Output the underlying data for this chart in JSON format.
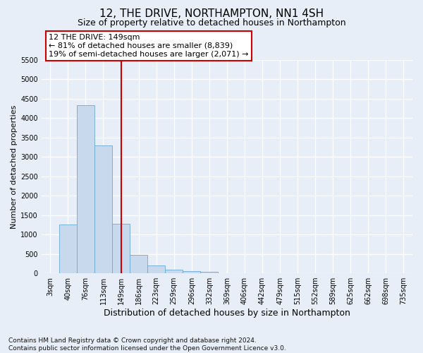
{
  "title": "12, THE DRIVE, NORTHAMPTON, NN1 4SH",
  "subtitle": "Size of property relative to detached houses in Northampton",
  "xlabel": "Distribution of detached houses by size in Northampton",
  "ylabel": "Number of detached properties",
  "footer_line1": "Contains HM Land Registry data © Crown copyright and database right 2024.",
  "footer_line2": "Contains public sector information licensed under the Open Government Licence v3.0.",
  "bar_labels": [
    "3sqm",
    "40sqm",
    "76sqm",
    "113sqm",
    "149sqm",
    "186sqm",
    "223sqm",
    "259sqm",
    "296sqm",
    "332sqm",
    "369sqm",
    "406sqm",
    "442sqm",
    "479sqm",
    "515sqm",
    "552sqm",
    "589sqm",
    "625sqm",
    "662sqm",
    "698sqm",
    "735sqm"
  ],
  "bar_values": [
    0,
    1260,
    4320,
    3290,
    1280,
    480,
    205,
    90,
    55,
    45,
    0,
    0,
    0,
    0,
    0,
    0,
    0,
    0,
    0,
    0,
    0
  ],
  "bar_color": "#c8d9ee",
  "bar_edge_color": "#6aaad4",
  "vline_idx": 4,
  "vline_color": "#cc0000",
  "ylim_max": 5500,
  "yticks": [
    0,
    500,
    1000,
    1500,
    2000,
    2500,
    3000,
    3500,
    4000,
    4500,
    5000,
    5500
  ],
  "annotation_title": "12 THE DRIVE: 149sqm",
  "annotation_line1": "← 81% of detached houses are smaller (8,839)",
  "annotation_line2": "19% of semi-detached houses are larger (2,071) →",
  "ann_box_edgecolor": "#cc0000",
  "ann_box_facecolor": "#ffffff",
  "bg_color": "#e8eef8",
  "grid_color": "#ffffff",
  "title_fontsize": 11,
  "subtitle_fontsize": 9,
  "xlabel_fontsize": 9,
  "ylabel_fontsize": 8,
  "tick_fontsize": 7,
  "ann_fontsize": 8,
  "footer_fontsize": 6.5
}
